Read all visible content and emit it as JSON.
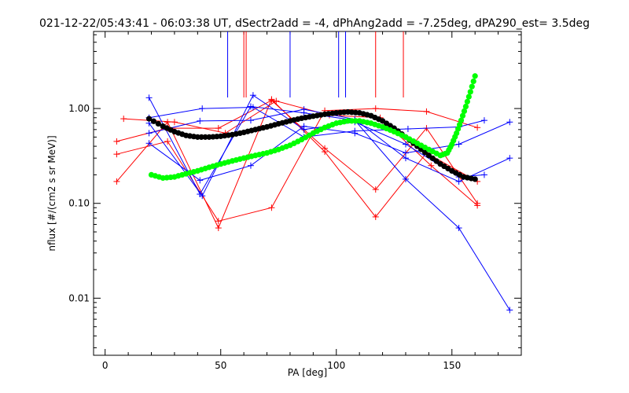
{
  "chart_data": {
    "type": "scatter",
    "title": "021-12-22/05:43:41 - 06:03:38 UT, dSectr2add = -4, dPhAng2add = -7.25deg, dPA290_est=    3.5deg",
    "xlabel": "PA [deg]",
    "ylabel": "nflux [#/(cm2 s sr MeV)]",
    "xlim": [
      -5,
      180
    ],
    "ylim": [
      0.0025,
      6.5
    ],
    "yscale": "log",
    "xticks": [
      0,
      50,
      100,
      150
    ],
    "xtick_labels": [
      "0",
      "50",
      "100",
      "150"
    ],
    "yticks": [
      0.01,
      0.1,
      1.0
    ],
    "ytick_labels": [
      "0.01",
      "0.10",
      "1.00"
    ],
    "grid": false,
    "colors": {
      "red": "#ff0000",
      "blue": "#0000ff",
      "black": "#000000",
      "green": "#00ff00"
    },
    "vlines": [
      {
        "x": 53,
        "color": "#0000ff"
      },
      {
        "x": 60,
        "color": "#ff0000"
      },
      {
        "x": 61,
        "color": "#ff0000"
      },
      {
        "x": 80,
        "color": "#0000ff"
      },
      {
        "x": 101,
        "color": "#0000ff"
      },
      {
        "x": 104,
        "color": "#0000ff"
      },
      {
        "x": 117,
        "color": "#ff0000"
      },
      {
        "x": 129,
        "color": "#ff0000"
      }
    ],
    "series": [
      {
        "color": "#ff0000",
        "x": [
          5,
          27,
          49,
          72,
          95,
          117,
          139,
          161
        ],
        "y": [
          0.17,
          0.72,
          0.055,
          1.25,
          0.35,
          0.072,
          0.34,
          0.17
        ]
      },
      {
        "color": "#ff0000",
        "x": [
          5,
          27,
          49,
          72,
          95,
          117,
          139,
          161
        ],
        "y": [
          0.45,
          0.62,
          0.62,
          1.22,
          0.38,
          0.14,
          0.62,
          0.1
        ]
      },
      {
        "color": "#ff0000",
        "x": [
          5,
          27,
          49,
          72,
          95,
          117,
          139,
          161
        ],
        "y": [
          0.33,
          0.45,
          0.065,
          0.09,
          0.95,
          1.0,
          0.93,
          0.63
        ]
      },
      {
        "color": "#ff0000",
        "x": [
          8,
          30,
          52,
          74,
          97,
          119,
          141,
          161
        ],
        "y": [
          0.78,
          0.72,
          0.55,
          1.2,
          0.85,
          0.8,
          0.25,
          0.095
        ]
      },
      {
        "color": "#0000ff",
        "x": [
          19,
          41,
          63,
          86,
          108,
          130,
          153,
          175
        ],
        "y": [
          1.3,
          0.125,
          1.05,
          0.9,
          0.75,
          0.18,
          0.055,
          0.0075
        ]
      },
      {
        "color": "#0000ff",
        "x": [
          19,
          41,
          63,
          86,
          108,
          130,
          153,
          175
        ],
        "y": [
          0.55,
          0.74,
          0.75,
          0.98,
          0.77,
          0.3,
          0.17,
          0.3
        ]
      },
      {
        "color": "#0000ff",
        "x": [
          19,
          41,
          63,
          86,
          108,
          130,
          153,
          175
        ],
        "y": [
          0.43,
          0.175,
          0.25,
          0.65,
          0.55,
          0.34,
          0.42,
          0.72
        ]
      },
      {
        "color": "#0000ff",
        "x": [
          19,
          42,
          64,
          86,
          108,
          131,
          153,
          164
        ],
        "y": [
          0.8,
          1.0,
          1.03,
          0.5,
          0.58,
          0.61,
          0.64,
          0.75
        ]
      },
      {
        "color": "#0000ff",
        "x": [
          19,
          42,
          64,
          86,
          108,
          130,
          153,
          164
        ],
        "y": [
          0.7,
          0.12,
          1.38,
          0.6,
          0.72,
          0.42,
          0.19,
          0.2
        ]
      },
      {
        "color": "#000000",
        "x": [
          19,
          25,
          30,
          35,
          40,
          45,
          50,
          55,
          60,
          65,
          70,
          75,
          80,
          85,
          90,
          95,
          100,
          105,
          110,
          115,
          120,
          125,
          130,
          135,
          140,
          145,
          150,
          155,
          160
        ],
        "y": [
          0.78,
          0.65,
          0.57,
          0.52,
          0.5,
          0.5,
          0.51,
          0.53,
          0.56,
          0.6,
          0.64,
          0.69,
          0.74,
          0.79,
          0.83,
          0.87,
          0.9,
          0.92,
          0.9,
          0.84,
          0.74,
          0.62,
          0.5,
          0.4,
          0.32,
          0.26,
          0.22,
          0.19,
          0.18
        ]
      },
      {
        "color": "#00ff00",
        "x": [
          20,
          25,
          30,
          35,
          40,
          45,
          50,
          55,
          60,
          65,
          70,
          75,
          80,
          85,
          90,
          95,
          100,
          105,
          110,
          115,
          120,
          125,
          130,
          135,
          140,
          145,
          148,
          150,
          152,
          154,
          156,
          158,
          160
        ],
        "y": [
          0.2,
          0.185,
          0.19,
          0.205,
          0.22,
          0.24,
          0.26,
          0.28,
          0.3,
          0.32,
          0.34,
          0.37,
          0.41,
          0.47,
          0.55,
          0.63,
          0.7,
          0.74,
          0.74,
          0.7,
          0.64,
          0.57,
          0.5,
          0.43,
          0.37,
          0.32,
          0.34,
          0.42,
          0.55,
          0.75,
          1.05,
          1.5,
          2.2
        ]
      }
    ]
  }
}
